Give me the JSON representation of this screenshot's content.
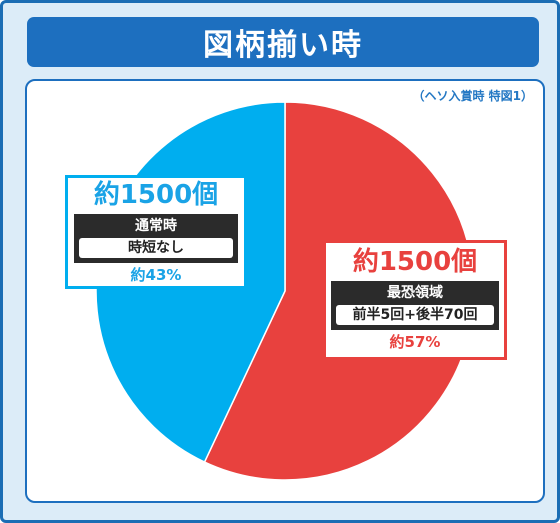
{
  "title": "図柄揃い時",
  "note": "（ヘソ入賞時 特図1）",
  "colors": {
    "frame_bg": "#dcecf8",
    "title_bg": "#1d6fbf",
    "blue": "#00aeef",
    "red": "#e8413e"
  },
  "chart_data": {
    "type": "pie",
    "slices": [
      {
        "count_label": "約1500個",
        "mode": "最恐領域",
        "detail": "前半5回+後半70回",
        "percent_label": "約57%",
        "value": 57,
        "color": "#e8413e"
      },
      {
        "count_label": "約1500個",
        "mode": "通常時",
        "detail": "時短なし",
        "percent_label": "約43%",
        "value": 43,
        "color": "#00aeef"
      }
    ]
  }
}
